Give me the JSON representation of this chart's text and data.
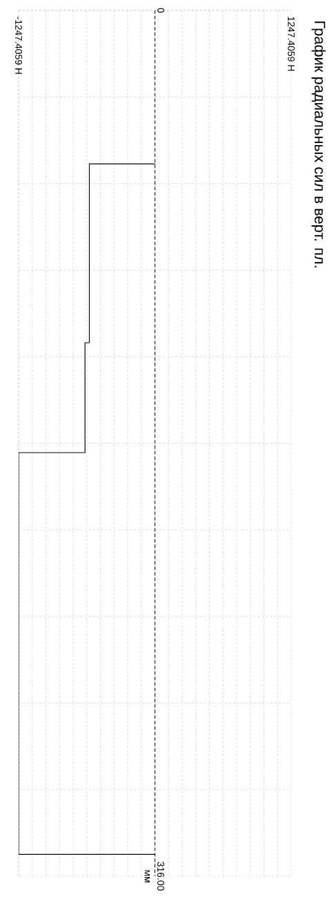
{
  "chart_data": {
    "type": "line",
    "title": "График радиальных сил в верт. пл.",
    "ylabel": "мм",
    "x": [
      0,
      -600,
      -600,
      -640,
      -640,
      -1247.4059,
      -1247.4059,
      0
    ],
    "values": [
      56,
      56,
      121.3,
      121.3,
      161.4,
      161.4,
      308,
      308
    ],
    "ref_lines": [
      {
        "axis": "x",
        "value": 0,
        "color": "#000000",
        "line_style": "dashed"
      }
    ],
    "color": "#000000",
    "xlim": [
      -1247.4059,
      1247.4059
    ],
    "ylim": [
      316,
      0
    ],
    "xticks": [
      {
        "value": -1247.4059,
        "label": "-1247.4059 Н"
      },
      {
        "value": 1247.4059,
        "label": "1247.4059 Н"
      }
    ],
    "yticks": [
      0,
      {
        "value": 316,
        "label": "316.00"
      }
    ],
    "grid": true
  }
}
